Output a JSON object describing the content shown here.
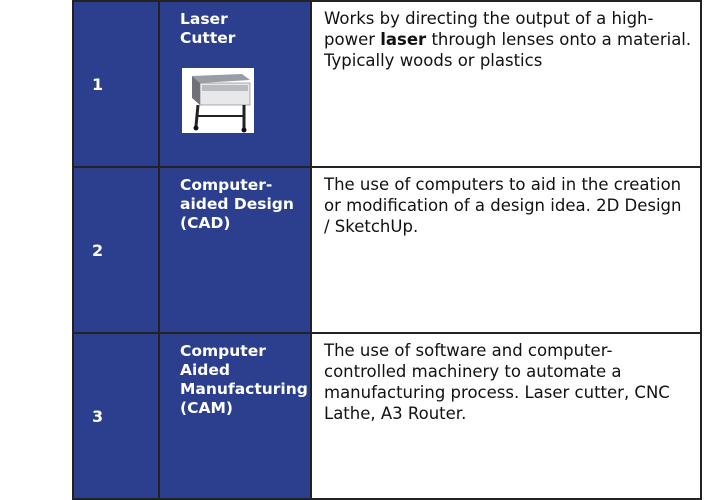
{
  "table": {
    "rows": [
      {
        "number": "1",
        "name": "Laser Cutter",
        "description": {
          "before": "Works by directing the output of a high-power ",
          "bold": "laser",
          "after": " through lenses onto a material. Typically woods or plastics"
        }
      },
      {
        "number": "2",
        "name": "Computer-aided Design (CAD)",
        "description": {
          "before": "The use of computers to aid in the creation  or modification of a design idea. 2D Design / SketchUp."
        }
      },
      {
        "number": "3",
        "name": "Computer Aided Manufacturing (CAM)",
        "description": {
          "before": "The use of software and computer-controlled machinery to automate a manufacturing process. Laser cutter, CNC Lathe, A3 Router."
        }
      }
    ]
  }
}
